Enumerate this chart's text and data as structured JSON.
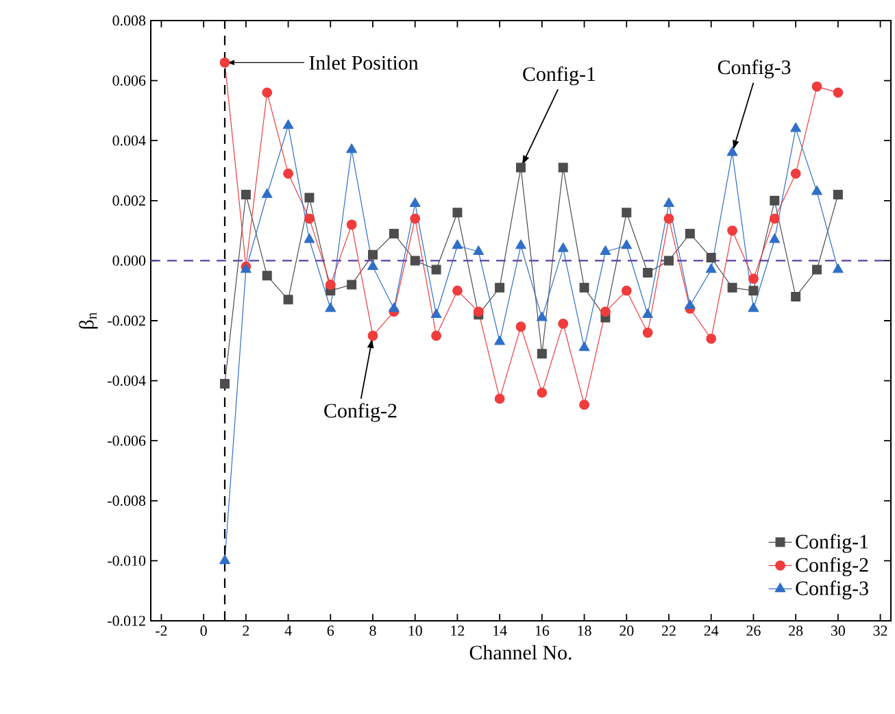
{
  "chart_data": {
    "type": "line",
    "xlabel": "Channel No.",
    "ylabel": "β$_{n}$",
    "x": [
      1,
      2,
      3,
      4,
      5,
      6,
      7,
      8,
      9,
      10,
      11,
      12,
      13,
      14,
      15,
      16,
      17,
      18,
      19,
      20,
      21,
      22,
      23,
      24,
      25,
      26,
      27,
      28,
      29,
      30
    ],
    "series": [
      {
        "name": "Config-1",
        "color": "#4d4d4d",
        "marker": "square",
        "values": [
          -0.0041,
          0.0022,
          -0.0005,
          -0.0013,
          0.0021,
          -0.001,
          -0.0008,
          0.0002,
          0.0009,
          0.0,
          -0.0003,
          0.0016,
          -0.0018,
          -0.0009,
          0.0031,
          -0.0031,
          0.0031,
          -0.0009,
          -0.0019,
          0.0016,
          -0.0004,
          0.0,
          0.0009,
          0.0001,
          -0.0009,
          -0.001,
          0.002,
          -0.0012,
          -0.0003,
          0.0022
        ]
      },
      {
        "name": "Config-2",
        "color": "#f03c3c",
        "marker": "circle",
        "values": [
          0.0066,
          -0.0002,
          0.0056,
          0.0029,
          0.0014,
          -0.0008,
          0.0012,
          -0.0025,
          -0.0017,
          0.0014,
          -0.0025,
          -0.001,
          -0.0017,
          -0.0046,
          -0.0022,
          -0.0044,
          -0.0021,
          -0.0048,
          -0.0017,
          -0.001,
          -0.0024,
          0.0014,
          -0.0016,
          -0.0026,
          0.001,
          -0.0006,
          0.0014,
          0.0029,
          0.0058,
          0.0056
        ]
      },
      {
        "name": "Config-3",
        "color": "#2f6fc8",
        "marker": "triangle",
        "values": [
          -0.01,
          -0.0003,
          0.0022,
          0.0045,
          0.0007,
          -0.0016,
          0.0037,
          -0.0002,
          -0.0016,
          0.0019,
          -0.0018,
          0.0005,
          0.0003,
          -0.0027,
          0.0005,
          -0.0019,
          0.0004,
          -0.0029,
          0.0003,
          0.0005,
          -0.0018,
          0.0019,
          -0.0015,
          -0.0003,
          0.0036,
          -0.0016,
          0.0007,
          0.0044,
          0.0023,
          -0.0003
        ]
      }
    ],
    "xlim": [
      -2.5,
      32.5
    ],
    "ylim": [
      -0.012,
      0.008
    ],
    "xticks": [
      -2,
      0,
      2,
      4,
      6,
      8,
      10,
      12,
      14,
      16,
      18,
      20,
      22,
      24,
      26,
      28,
      30,
      32
    ],
    "yticks": [
      {
        "value": -0.012,
        "label": "-0.012"
      },
      {
        "value": -0.01,
        "label": "-0.010"
      },
      {
        "value": -0.008,
        "label": "-0.008"
      },
      {
        "value": -0.006,
        "label": "-0.006"
      },
      {
        "value": -0.004,
        "label": "-0.004"
      },
      {
        "value": -0.002,
        "label": "-0.002"
      },
      {
        "value": 0,
        "label": "0.000"
      },
      {
        "value": 0.002,
        "label": "0.002"
      },
      {
        "value": 0.004,
        "label": "0.004"
      },
      {
        "value": 0.006,
        "label": "0.006"
      },
      {
        "value": 0.008,
        "label": "0.008"
      }
    ],
    "ref_lines": [
      {
        "axis": "x",
        "value": 1,
        "color": "#000000",
        "line_style": "dashed"
      },
      {
        "axis": "y",
        "value": 0,
        "color": "#5b3fa8",
        "line_style": "dashed"
      }
    ],
    "annotations": [
      {
        "text": "Inlet Position",
        "x": 1,
        "y": 0.0066
      },
      {
        "text": "Config-1",
        "x": 15,
        "y": 0.0031
      },
      {
        "text": "Config-3",
        "x": 25,
        "y": 0.0036
      },
      {
        "text": "Config-2",
        "x": 8,
        "y": -0.0025
      }
    ],
    "legend": "bottom right"
  }
}
